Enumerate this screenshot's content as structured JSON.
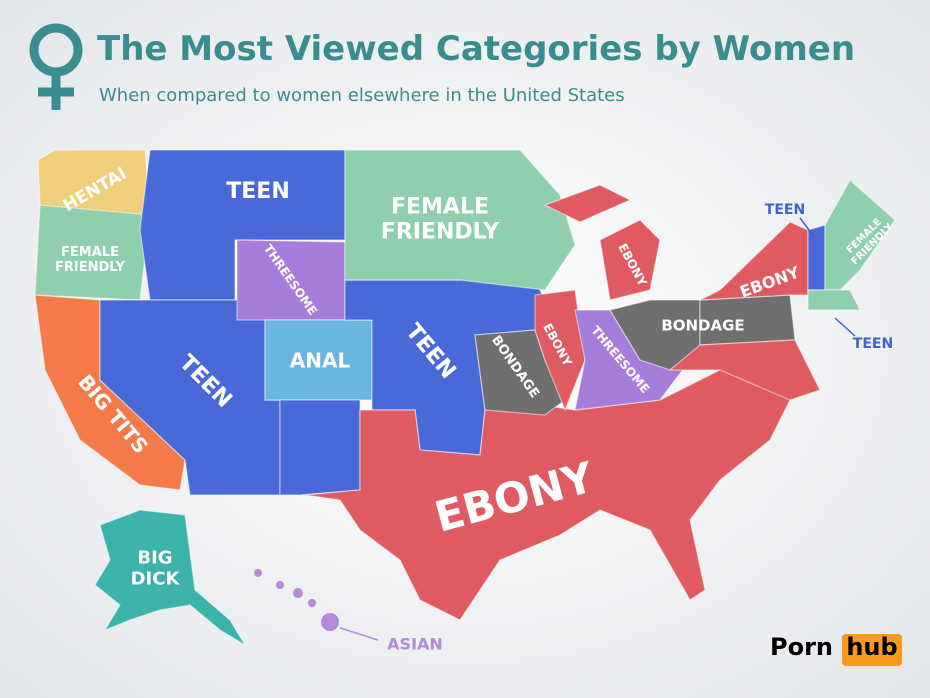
{
  "header": {
    "title": "The Most Viewed Categories by Women",
    "subtitle": "When compared to women elsewhere in the United States"
  },
  "regions": [
    {
      "lines": [
        "HENTAI"
      ]
    },
    {
      "lines": [
        "FEMALE",
        "FRIENDLY"
      ]
    },
    {
      "lines": [
        "TEEN"
      ]
    },
    {
      "lines": [
        "FEMALE",
        "FRIENDLY"
      ]
    },
    {
      "lines": [
        "THREESOME"
      ]
    },
    {
      "lines": [
        "ANAL"
      ]
    },
    {
      "lines": [
        "TEEN"
      ]
    },
    {
      "lines": [
        "TEEN"
      ]
    },
    {
      "lines": [
        "BIG TITS"
      ]
    },
    {
      "lines": [
        "BONDAGE"
      ]
    },
    {
      "lines": [
        "EBONY"
      ]
    },
    {
      "lines": [
        "THREESOME"
      ]
    },
    {
      "lines": [
        "EBONY"
      ]
    },
    {
      "lines": [
        "EBONY"
      ]
    },
    {
      "lines": [
        "BONDAGE"
      ]
    },
    {
      "lines": [
        "TEEN"
      ]
    },
    {
      "lines": [
        "FEMALE",
        "FRIENDLY"
      ]
    },
    {
      "lines": [
        "TEEN"
      ]
    },
    {
      "lines": [
        "EBONY"
      ]
    },
    {
      "lines": [
        "BIG",
        "DICK"
      ]
    },
    {
      "lines": [
        "ASIAN"
      ]
    }
  ],
  "logo": {
    "left": "Porn",
    "right": "hub"
  }
}
